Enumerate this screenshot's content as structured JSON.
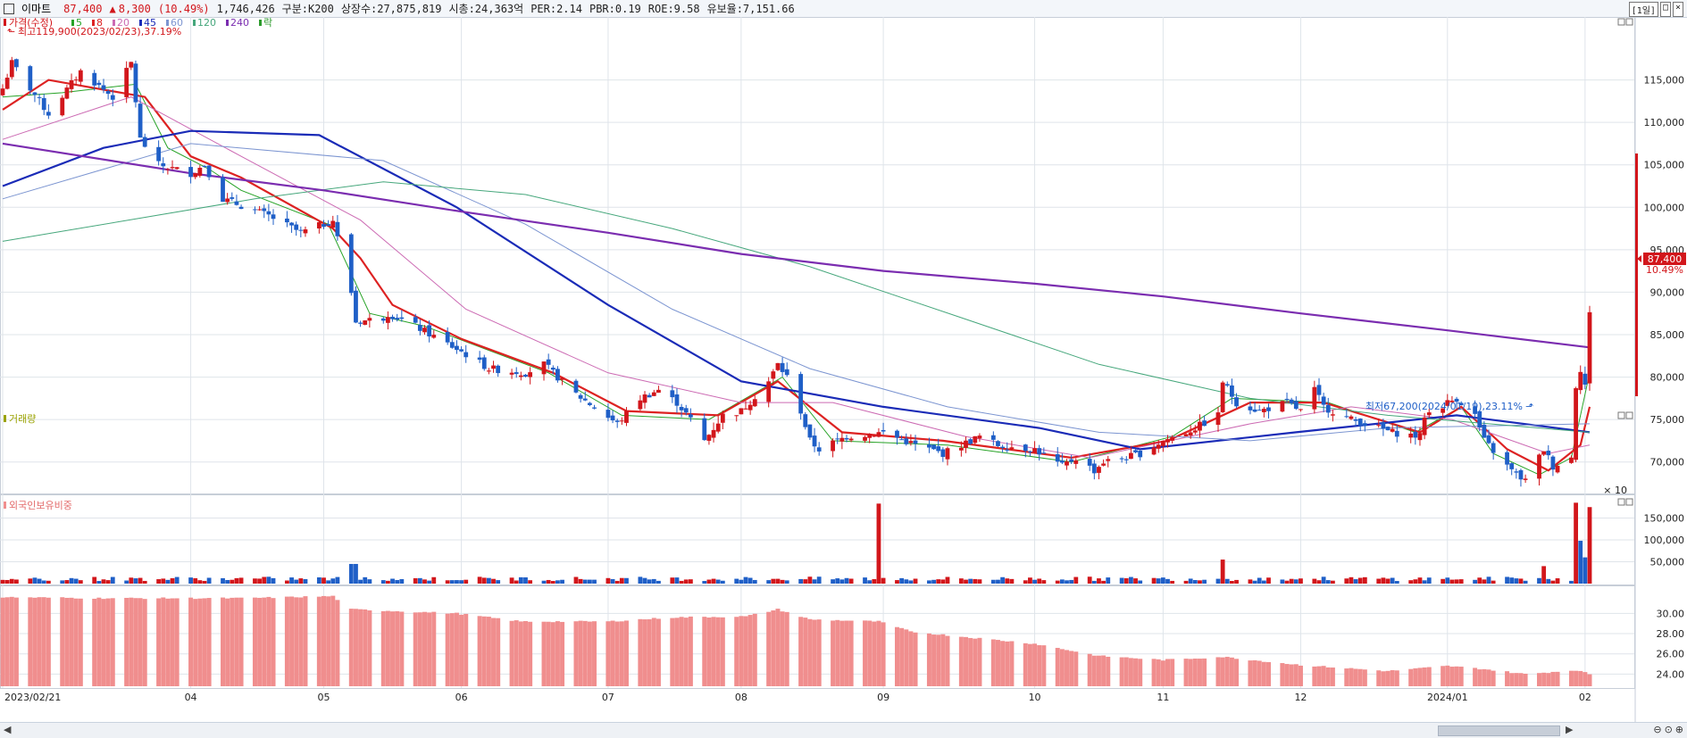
{
  "header": {
    "name": "이마트",
    "price": "87,400",
    "change_arrow": "▲",
    "change": "8,300",
    "change_pct": "(10.49%)",
    "volume": "1,746,426",
    "group": "구분:K200",
    "shares": "상장수:27,875,819",
    "mcap": "시총:24,363억",
    "per": "PER:2.14",
    "pbr": "PBR:0.19",
    "roe": "ROE:9.58",
    "reserve": "유보율:7,151.66",
    "period": "[1일]",
    "btn_max": "□",
    "btn_close": "×"
  },
  "legend": {
    "price": "가격(수정)",
    "ma": [
      {
        "label": "5",
        "color": "#27a327"
      },
      {
        "label": "8",
        "color": "#dd2222"
      },
      {
        "label": "20",
        "color": "#cc6ab3"
      },
      {
        "label": "45",
        "color": "#1a2bb7"
      },
      {
        "label": "60",
        "color": "#7c95d1"
      },
      {
        "label": "120",
        "color": "#46a77c"
      },
      {
        "label": "240",
        "color": "#7b2db0"
      }
    ],
    "extra": "락"
  },
  "annotations": {
    "high": "최고119,900(2023/02/23),37.19%",
    "low": "최저67,200(2024/01/19),23.11%"
  },
  "price_tag": {
    "price": "87,400",
    "pct": "10.49%"
  },
  "panels": {
    "volume_title": "거래량",
    "volume_unit": "× 10",
    "foreign_title": "외국인보유비중"
  },
  "colors": {
    "up": "#d2161b",
    "down": "#1f5fc7",
    "foreign": "#f08e8e",
    "grid": "#dfe4ea"
  },
  "chart_data": [
    {
      "type": "candlestick",
      "title": "",
      "xlabel": "",
      "ylabel": "",
      "ylim": [
        66500,
        122000
      ],
      "yticks": [
        70000,
        75000,
        80000,
        85000,
        90000,
        95000,
        100000,
        105000,
        110000,
        115000
      ],
      "ytick_labels": [
        "70,000",
        "75,000",
        "80,000",
        "85,000",
        "90,000",
        "95,000",
        "100,000",
        "105,000",
        "110,000",
        "115,000"
      ],
      "x_tick_labels": [
        "2023/02/21",
        "04",
        "05",
        "06",
        "07",
        "08",
        "09",
        "10",
        "11",
        "12",
        "2024/01",
        "02"
      ],
      "x_tick_dates": [
        "2023-02-21",
        "2023-04-03",
        "2023-05-02",
        "2023-06-01",
        "2023-07-03",
        "2023-08-01",
        "2023-09-01",
        "2023-10-04",
        "2023-11-01",
        "2023-12-01",
        "2024-01-02",
        "2024-02-01"
      ],
      "close_keyframes": [
        [
          "2023-02-21",
          114000
        ],
        [
          "2023-02-23",
          117000
        ],
        [
          "2023-03-03",
          111000
        ],
        [
          "2023-03-10",
          116000
        ],
        [
          "2023-03-17",
          113000
        ],
        [
          "2023-03-21",
          117000
        ],
        [
          "2023-03-23",
          108000
        ],
        [
          "2023-03-27",
          105000
        ],
        [
          "2023-04-03",
          104000
        ],
        [
          "2023-04-06",
          105000
        ],
        [
          "2023-04-10",
          101000
        ],
        [
          "2023-04-20",
          99000
        ],
        [
          "2023-04-27",
          97000
        ],
        [
          "2023-05-02",
          98000
        ],
        [
          "2023-05-04",
          98500
        ],
        [
          "2023-05-08",
          90000
        ],
        [
          "2023-05-09",
          86500
        ],
        [
          "2023-05-15",
          87000
        ],
        [
          "2023-05-16",
          87500
        ],
        [
          "2023-05-22",
          86000
        ],
        [
          "2023-06-01",
          83000
        ],
        [
          "2023-06-07",
          81000
        ],
        [
          "2023-06-15",
          80500
        ],
        [
          "2023-06-19",
          81500
        ],
        [
          "2023-06-26",
          78000
        ],
        [
          "2023-07-05",
          74500
        ],
        [
          "2023-07-10",
          77500
        ],
        [
          "2023-07-14",
          78500
        ],
        [
          "2023-07-18",
          77000
        ],
        [
          "2023-07-21",
          75000
        ],
        [
          "2023-07-24",
          72500
        ],
        [
          "2023-07-28",
          75500
        ],
        [
          "2023-08-01",
          76000
        ],
        [
          "2023-08-07",
          79500
        ],
        [
          "2023-08-09",
          81500
        ],
        [
          "2023-08-11",
          80000
        ],
        [
          "2023-08-14",
          76000
        ],
        [
          "2023-08-16",
          72500
        ],
        [
          "2023-08-18",
          71500
        ],
        [
          "2023-08-24",
          73000
        ],
        [
          "2023-09-01",
          73500
        ],
        [
          "2023-09-08",
          72000
        ],
        [
          "2023-09-14",
          71000
        ],
        [
          "2023-09-18",
          72000
        ],
        [
          "2023-09-22",
          73000
        ],
        [
          "2023-09-26",
          72000
        ],
        [
          "2023-10-04",
          71500
        ],
        [
          "2023-10-10",
          69500
        ],
        [
          "2023-10-13",
          70500
        ],
        [
          "2023-10-17",
          69000
        ],
        [
          "2023-10-19",
          70000
        ],
        [
          "2023-10-24",
          70500
        ],
        [
          "2023-10-27",
          71000
        ],
        [
          "2023-11-01",
          72500
        ],
        [
          "2023-11-06",
          73500
        ],
        [
          "2023-11-08",
          74000
        ],
        [
          "2023-11-13",
          75500
        ],
        [
          "2023-11-14",
          79500
        ],
        [
          "2023-11-17",
          77000
        ],
        [
          "2023-11-22",
          76000
        ],
        [
          "2023-11-28",
          77000
        ],
        [
          "2023-12-01",
          76000
        ],
        [
          "2023-12-04",
          78500
        ],
        [
          "2023-12-06",
          76500
        ],
        [
          "2023-12-12",
          75000
        ],
        [
          "2023-12-18",
          74000
        ],
        [
          "2023-12-21",
          73500
        ],
        [
          "2023-12-27",
          73000
        ],
        [
          "2023-12-28",
          75500
        ],
        [
          "2024-01-02",
          77000
        ],
        [
          "2024-01-04",
          77500
        ],
        [
          "2024-01-08",
          75500
        ],
        [
          "2024-01-10",
          72500
        ],
        [
          "2024-01-15",
          69500
        ],
        [
          "2024-01-17",
          68500
        ],
        [
          "2024-01-19",
          67800
        ],
        [
          "2024-01-23",
          71500
        ],
        [
          "2024-01-25",
          69500
        ],
        [
          "2024-01-29",
          70500
        ],
        [
          "2024-01-30",
          79000
        ],
        [
          "2024-01-31",
          81000
        ],
        [
          "2024-02-01",
          79100
        ],
        [
          "2024-02-02",
          87400
        ]
      ],
      "moving_averages": [
        {
          "name": "5",
          "color": "#27a327",
          "points": [
            [
              "2023-02-21",
              113000
            ],
            [
              "2023-03-06",
              113500
            ],
            [
              "2023-03-22",
              114500
            ],
            [
              "2023-03-29",
              107000
            ],
            [
              "2023-04-07",
              104500
            ],
            [
              "2023-04-14",
              102000
            ],
            [
              "2023-05-03",
              98000
            ],
            [
              "2023-05-12",
              87500
            ],
            [
              "2023-05-24",
              86000
            ],
            [
              "2023-06-20",
              80500
            ],
            [
              "2023-07-06",
              75500
            ],
            [
              "2023-07-25",
              75000
            ],
            [
              "2023-08-10",
              80000
            ],
            [
              "2023-08-21",
              72500
            ],
            [
              "2023-09-15",
              72000
            ],
            [
              "2023-10-12",
              70000
            ],
            [
              "2023-11-03",
              73000
            ],
            [
              "2023-11-16",
              77500
            ],
            [
              "2023-12-07",
              77000
            ],
            [
              "2023-12-26",
              73500
            ],
            [
              "2024-01-05",
              76500
            ],
            [
              "2024-01-12",
              71000
            ],
            [
              "2024-01-22",
              68500
            ],
            [
              "2024-01-29",
              70500
            ],
            [
              "2024-02-02",
              80500
            ]
          ]
        },
        {
          "name": "8",
          "color": "#dd2222",
          "points": [
            [
              "2023-02-21",
              111500
            ],
            [
              "2023-03-03",
              115000
            ],
            [
              "2023-03-24",
              113000
            ],
            [
              "2023-04-03",
              106000
            ],
            [
              "2023-04-14",
              103500
            ],
            [
              "2023-05-04",
              97500
            ],
            [
              "2023-05-10",
              94000
            ],
            [
              "2023-05-17",
              88500
            ],
            [
              "2023-06-01",
              84500
            ],
            [
              "2023-06-21",
              80500
            ],
            [
              "2023-07-07",
              76000
            ],
            [
              "2023-07-27",
              75500
            ],
            [
              "2023-08-09",
              79500
            ],
            [
              "2023-08-23",
              73500
            ],
            [
              "2023-09-14",
              72500
            ],
            [
              "2023-10-12",
              70500
            ],
            [
              "2023-11-02",
              72500
            ],
            [
              "2023-11-20",
              77000
            ],
            [
              "2023-12-06",
              77000
            ],
            [
              "2023-12-27",
              73500
            ],
            [
              "2024-01-05",
              76500
            ],
            [
              "2024-01-15",
              71500
            ],
            [
              "2024-01-24",
              69000
            ],
            [
              "2024-01-31",
              72000
            ],
            [
              "2024-02-02",
              76500
            ]
          ]
        },
        {
          "name": "20",
          "color": "#cc6ab3",
          "points": [
            [
              "2023-02-21",
              108000
            ],
            [
              "2023-03-21",
              113000
            ],
            [
              "2023-04-14",
              106000
            ],
            [
              "2023-05-10",
              98500
            ],
            [
              "2023-06-02",
              88000
            ],
            [
              "2023-07-03",
              80500
            ],
            [
              "2023-08-01",
              77000
            ],
            [
              "2023-08-21",
              77000
            ],
            [
              "2023-09-19",
              73000
            ],
            [
              "2023-10-16",
              70500
            ],
            [
              "2023-11-20",
              74500
            ],
            [
              "2023-12-12",
              76500
            ],
            [
              "2024-01-03",
              75000
            ],
            [
              "2024-01-24",
              71000
            ],
            [
              "2024-02-02",
              72000
            ]
          ]
        },
        {
          "name": "45",
          "color": "#1a2bb7",
          "points": [
            [
              "2023-02-21",
              102500
            ],
            [
              "2023-03-15",
              107000
            ],
            [
              "2023-04-03",
              109000
            ],
            [
              "2023-05-01",
              108500
            ],
            [
              "2023-05-31",
              100000
            ],
            [
              "2023-07-03",
              88500
            ],
            [
              "2023-08-01",
              79500
            ],
            [
              "2023-09-01",
              76500
            ],
            [
              "2023-10-05",
              74000
            ],
            [
              "2023-10-27",
              71500
            ],
            [
              "2023-11-30",
              73500
            ],
            [
              "2024-01-04",
              75500
            ],
            [
              "2024-02-02",
              73500
            ]
          ]
        },
        {
          "name": "60",
          "color": "#7c95d1",
          "points": [
            [
              "2023-02-21",
              101000
            ],
            [
              "2023-04-03",
              107500
            ],
            [
              "2023-05-15",
              105500
            ],
            [
              "2023-06-15",
              98000
            ],
            [
              "2023-07-17",
              88000
            ],
            [
              "2023-08-16",
              81000
            ],
            [
              "2023-09-15",
              76500
            ],
            [
              "2023-10-18",
              73500
            ],
            [
              "2023-11-20",
              72500
            ],
            [
              "2023-12-20",
              74000
            ],
            [
              "2024-02-02",
              74500
            ]
          ]
        },
        {
          "name": "120",
          "color": "#46a77c",
          "points": [
            [
              "2023-02-21",
              96000
            ],
            [
              "2023-04-17",
              101000
            ],
            [
              "2023-05-15",
              103000
            ],
            [
              "2023-06-15",
              101500
            ],
            [
              "2023-07-17",
              97500
            ],
            [
              "2023-08-16",
              93000
            ],
            [
              "2023-09-18",
              87000
            ],
            [
              "2023-10-18",
              81500
            ],
            [
              "2023-11-20",
              77500
            ],
            [
              "2023-12-20",
              75500
            ],
            [
              "2024-01-22",
              74000
            ],
            [
              "2024-02-02",
              73500
            ]
          ]
        },
        {
          "name": "240",
          "color": "#7b2db0",
          "points": [
            [
              "2023-02-21",
              107500
            ],
            [
              "2023-04-03",
              104000
            ],
            [
              "2023-05-02",
              102000
            ],
            [
              "2023-06-01",
              99500
            ],
            [
              "2023-07-03",
              97000
            ],
            [
              "2023-08-01",
              94500
            ],
            [
              "2023-09-01",
              92500
            ],
            [
              "2023-10-04",
              91000
            ],
            [
              "2023-11-01",
              89500
            ],
            [
              "2023-12-01",
              87500
            ],
            [
              "2024-01-02",
              85500
            ],
            [
              "2024-02-02",
              83500
            ]
          ]
        }
      ]
    },
    {
      "type": "bar",
      "title": "거래량",
      "ylim": [
        0,
        200000
      ],
      "yticks": [
        50000,
        100000,
        150000
      ],
      "ytick_labels": [
        "50,000",
        "100,000",
        "150,000"
      ],
      "unit": "× 10",
      "baseline": 11000,
      "spikes": [
        [
          "2023-05-08",
          45000,
          "down"
        ],
        [
          "2023-05-09",
          45000,
          "down"
        ],
        [
          "2023-08-31",
          183000,
          "up"
        ],
        [
          "2023-11-14",
          55000,
          "up"
        ],
        [
          "2024-01-23",
          40000,
          "up"
        ],
        [
          "2024-01-30",
          185000,
          "up"
        ],
        [
          "2024-01-31",
          98000,
          "down"
        ],
        [
          "2024-02-01",
          60000,
          "down"
        ],
        [
          "2024-02-02",
          175000,
          "up"
        ]
      ]
    },
    {
      "type": "bar",
      "title": "외국인보유비중",
      "ylim": [
        22.8,
        32.5
      ],
      "yticks": [
        24,
        26,
        28,
        30
      ],
      "ytick_labels": [
        "24.00",
        "26.00",
        "28.00",
        "30.00"
      ],
      "keyframes": [
        [
          "2023-02-21",
          31.6
        ],
        [
          "2023-03-15",
          31.5
        ],
        [
          "2023-04-14",
          31.5
        ],
        [
          "2023-05-04",
          31.7
        ],
        [
          "2023-05-08",
          30.4
        ],
        [
          "2023-05-31",
          30.0
        ],
        [
          "2023-06-14",
          29.2
        ],
        [
          "2023-07-03",
          29.2
        ],
        [
          "2023-07-17",
          29.6
        ],
        [
          "2023-08-02",
          29.7
        ],
        [
          "2023-08-09",
          30.4
        ],
        [
          "2023-08-16",
          29.4
        ],
        [
          "2023-08-31",
          29.2
        ],
        [
          "2023-09-07",
          28.2
        ],
        [
          "2023-10-04",
          27.0
        ],
        [
          "2023-10-18",
          25.8
        ],
        [
          "2023-11-01",
          25.4
        ],
        [
          "2023-11-14",
          25.7
        ],
        [
          "2023-12-01",
          24.9
        ],
        [
          "2023-12-20",
          24.3
        ],
        [
          "2024-01-02",
          24.8
        ],
        [
          "2024-01-10",
          24.5
        ],
        [
          "2024-01-19",
          24.0
        ],
        [
          "2024-01-30",
          24.4
        ],
        [
          "2024-02-02",
          24.0
        ]
      ]
    }
  ]
}
